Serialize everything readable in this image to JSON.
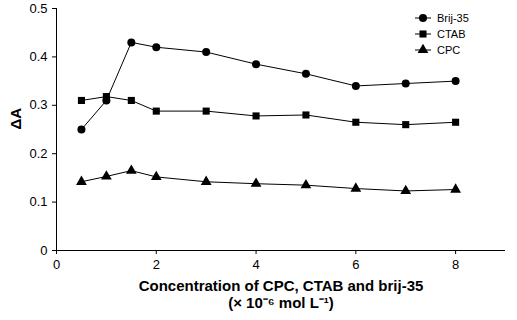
{
  "chart_data": {
    "type": "line",
    "x_label": "Concentration of CPC, CTAB and brij-35\n(× 10⁻⁶ mol L⁻¹)",
    "y_label": "ΔA",
    "x": [
      0.5,
      1,
      1.5,
      2,
      3,
      4,
      5,
      6,
      7,
      8
    ],
    "series": [
      {
        "name": "Brij-35",
        "color": "#000000",
        "marker": "circle",
        "values": [
          0.25,
          0.31,
          0.43,
          0.42,
          0.41,
          0.385,
          0.365,
          0.34,
          0.345,
          0.35
        ]
      },
      {
        "name": "CTAB",
        "color": "#000000",
        "marker": "square",
        "values": [
          0.31,
          0.318,
          0.31,
          0.288,
          0.288,
          0.278,
          0.28,
          0.265,
          0.26,
          0.265
        ]
      },
      {
        "name": "CPC",
        "color": "#000000",
        "marker": "triangle",
        "values": [
          0.142,
          0.153,
          0.165,
          0.152,
          0.142,
          0.138,
          0.135,
          0.128,
          0.123,
          0.126
        ]
      }
    ],
    "xlim": [
      0,
      9
    ],
    "xticks": [
      0,
      2,
      4,
      6,
      8
    ],
    "ylim": [
      0,
      0.5
    ],
    "yticks": [
      0,
      0.1,
      0.2,
      0.3,
      0.4,
      0.5
    ],
    "grid": false,
    "legend": "top-right"
  }
}
